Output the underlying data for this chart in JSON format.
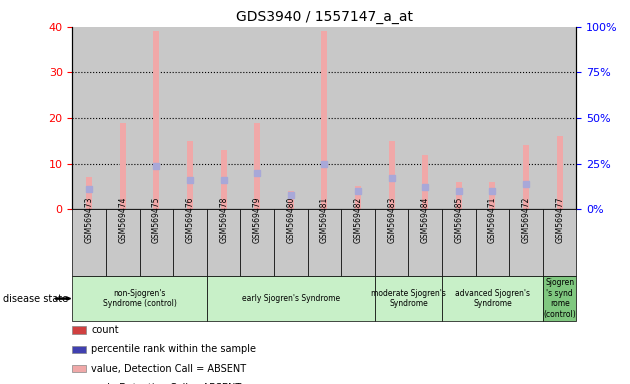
{
  "title": "GDS3940 / 1557147_a_at",
  "samples": [
    "GSM569473",
    "GSM569474",
    "GSM569475",
    "GSM569476",
    "GSM569478",
    "GSM569479",
    "GSM569480",
    "GSM569481",
    "GSM569482",
    "GSM569483",
    "GSM569484",
    "GSM569485",
    "GSM569471",
    "GSM569472",
    "GSM569477"
  ],
  "absent_bar_values": [
    7,
    19,
    39,
    15,
    13,
    19,
    4,
    39,
    5,
    15,
    12,
    6,
    6,
    14,
    16
  ],
  "absent_rank_values": [
    11,
    null,
    24,
    16,
    16,
    20,
    8,
    25,
    10,
    17,
    12,
    10,
    10,
    14,
    null
  ],
  "ylim_left": [
    0,
    40
  ],
  "ylim_right": [
    0,
    100
  ],
  "yticks_left": [
    0,
    10,
    20,
    30,
    40
  ],
  "yticks_right": [
    0,
    25,
    50,
    75,
    100
  ],
  "bar_color_light": "#f0a8a8",
  "rank_color_light": "#a8a8d8",
  "col_bg_color": "#c8c8c8",
  "groups": [
    {
      "label": "non-Sjogren's\nSyndrome (control)",
      "start": 0,
      "end": 3,
      "color": "#c8f0c8"
    },
    {
      "label": "early Sjogren's Syndrome",
      "start": 4,
      "end": 8,
      "color": "#c8f0c8"
    },
    {
      "label": "moderate Sjogren's\nSyndrome",
      "start": 9,
      "end": 10,
      "color": "#c8f0c8"
    },
    {
      "label": "advanced Sjogren's\nSyndrome",
      "start": 11,
      "end": 13,
      "color": "#c8f0c8"
    },
    {
      "label": "Sjogren\n's synd\nrome\n(control)",
      "start": 14,
      "end": 14,
      "color": "#80c880"
    }
  ],
  "legend_colors": [
    "#d04040",
    "#4040b0",
    "#f0a8a8",
    "#a8a8d8"
  ],
  "legend_labels": [
    "count",
    "percentile rank within the sample",
    "value, Detection Call = ABSENT",
    "rank, Detection Call = ABSENT"
  ]
}
